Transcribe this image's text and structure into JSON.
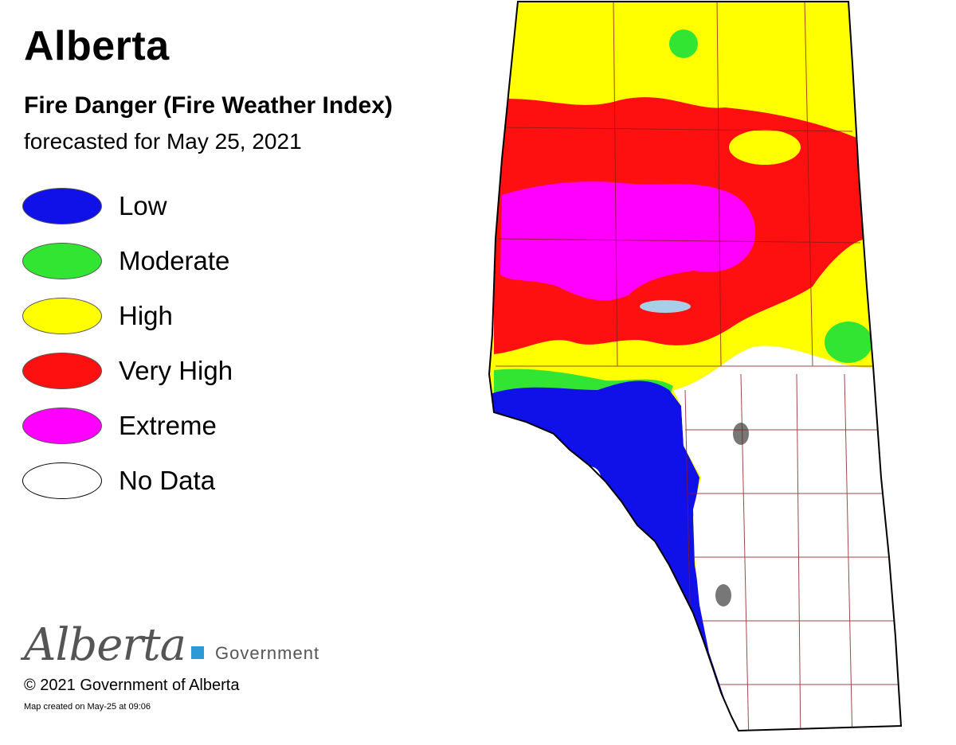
{
  "header": {
    "title": "Alberta",
    "subtitle": "Fire Danger (Fire Weather Index)",
    "date": "forecasted for May 25, 2021"
  },
  "legend": [
    {
      "label": "Low",
      "color": "#1010e8"
    },
    {
      "label": "Moderate",
      "color": "#33e533"
    },
    {
      "label": "High",
      "color": "#ffff00"
    },
    {
      "label": "Very High",
      "color": "#ff1010"
    },
    {
      "label": "Extreme",
      "color": "#ff00ff"
    },
    {
      "label": "No Data",
      "color": "#ffffff"
    }
  ],
  "logo": {
    "script": "Alberta",
    "government": "Government"
  },
  "footer": {
    "copyright": "© 2021 Government of Alberta",
    "created": "Map created on May-25 at 09:06"
  },
  "colors": {
    "low": "#1010e8",
    "moderate": "#33e533",
    "high": "#ffff00",
    "very_high": "#ff1010",
    "extreme": "#ff00ff",
    "no_data": "#ffffff",
    "boundary": "#8b1a1a",
    "water": "#a8cfe8",
    "border": "#000000"
  }
}
